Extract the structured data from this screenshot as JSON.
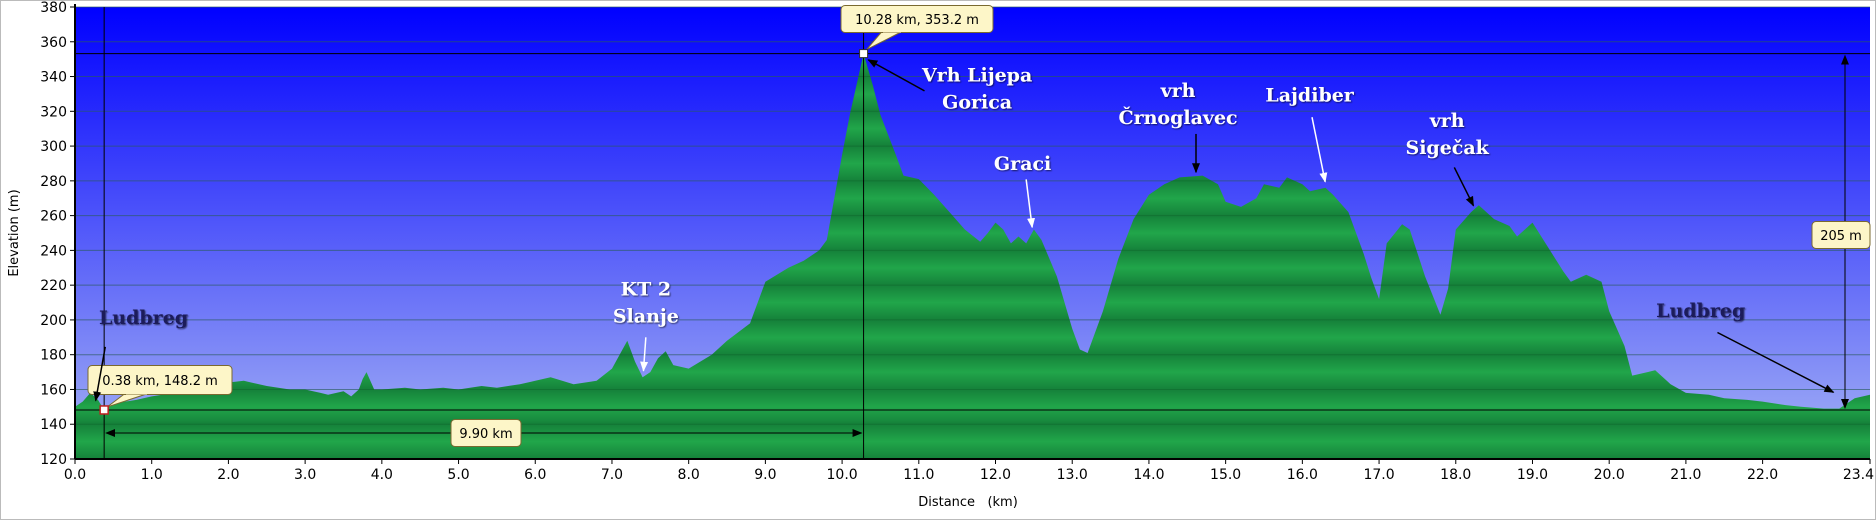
{
  "chart_data": {
    "type": "area",
    "title": "",
    "xlabel": "Distance   (km)",
    "ylabel": "Elevation (m)",
    "xlim": [
      0,
      23.4
    ],
    "ylim": [
      120,
      380
    ],
    "xticks": [
      "0.0",
      "1.0",
      "2.0",
      "3.0",
      "4.0",
      "5.0",
      "6.0",
      "7.0",
      "8.0",
      "9.0",
      "10.0",
      "11.0",
      "12.0",
      "13.0",
      "14.0",
      "15.0",
      "16.0",
      "17.0",
      "18.0",
      "19.0",
      "20.0",
      "21.0",
      "22.0",
      "23.4"
    ],
    "yticks": [
      "120",
      "140",
      "160",
      "180",
      "200",
      "220",
      "240",
      "260",
      "280",
      "300",
      "320",
      "340",
      "360",
      "380"
    ],
    "grid": true,
    "colors": {
      "sky_top": "#0000ff",
      "sky_bottom": "#a6b4f4",
      "fill": "#21a64a",
      "fill_dark": "#15813a"
    },
    "series": [
      {
        "x": [
          0.0,
          0.1,
          0.2,
          0.3,
          0.38,
          0.5,
          0.8,
          1.0,
          1.3,
          1.5,
          1.8,
          2.0,
          2.2,
          2.5,
          2.8,
          3.0,
          3.2,
          3.3,
          3.5,
          3.6,
          3.7,
          3.75,
          3.8,
          3.9,
          4.0,
          4.3,
          4.5,
          4.8,
          5.0,
          5.3,
          5.5,
          5.8,
          6.0,
          6.2,
          6.5,
          6.8,
          7.0,
          7.1,
          7.2,
          7.3,
          7.4,
          7.5,
          7.6,
          7.7,
          7.8,
          8.0,
          8.3,
          8.5,
          8.8,
          9.0,
          9.3,
          9.5,
          9.7,
          9.8,
          10.0,
          10.1,
          10.28,
          10.4,
          10.5,
          10.7,
          10.8,
          11.0,
          11.2,
          11.4,
          11.6,
          11.8,
          11.9,
          12.0,
          12.1,
          12.2,
          12.3,
          12.4,
          12.5,
          12.6,
          12.8,
          13.0,
          13.1,
          13.2,
          13.4,
          13.6,
          13.8,
          14.0,
          14.2,
          14.4,
          14.7,
          14.9,
          15.0,
          15.2,
          15.4,
          15.5,
          15.7,
          15.8,
          16.0,
          16.1,
          16.3,
          16.4,
          16.6,
          16.8,
          16.9,
          17.0,
          17.1,
          17.3,
          17.4,
          17.6,
          17.8,
          17.9,
          18.0,
          18.2,
          18.3,
          18.5,
          18.7,
          18.8,
          19.0,
          19.2,
          19.4,
          19.5,
          19.7,
          19.9,
          20.0,
          20.2,
          20.3,
          20.5,
          20.6,
          20.8,
          21.0,
          21.3,
          21.5,
          21.8,
          22.0,
          22.3,
          22.5,
          22.8,
          23.0,
          23.2,
          23.4
        ],
        "y": [
          150,
          153,
          158,
          154,
          148.2,
          152,
          154,
          156,
          158,
          160,
          163,
          164,
          165,
          162,
          160,
          160,
          158,
          157,
          159,
          156,
          160,
          166,
          170,
          160,
          160,
          161,
          160,
          161,
          160,
          162,
          161,
          163,
          165,
          167,
          163,
          165,
          172,
          180,
          188,
          176,
          167,
          170,
          178,
          182,
          174,
          172,
          180,
          188,
          198,
          222,
          230,
          234,
          240,
          246,
          295,
          318,
          353.2,
          335,
          318,
          295,
          283,
          281,
          272,
          262,
          252,
          245,
          250,
          256,
          252,
          244,
          248,
          244,
          252,
          246,
          225,
          195,
          183,
          181,
          205,
          235,
          258,
          272,
          278,
          282,
          283,
          278,
          268,
          265,
          270,
          278,
          276,
          282,
          278,
          274,
          276,
          272,
          262,
          238,
          224,
          212,
          244,
          255,
          252,
          225,
          203,
          218,
          252,
          262,
          266,
          258,
          254,
          248,
          256,
          242,
          228,
          222,
          226,
          222,
          205,
          185,
          168,
          170,
          171,
          163,
          158,
          157,
          155,
          154,
          153,
          151,
          150,
          149,
          149,
          155,
          157
        ]
      }
    ],
    "markers": [
      {
        "label": "10.28 km, 353.2 m",
        "x": 10.28,
        "y": 353.2
      },
      {
        "label": "0.38 km, 148.2 m",
        "x": 0.38,
        "y": 148.2
      }
    ],
    "measurements": {
      "distance": "9.90 km",
      "elevation_gain": "205 m"
    },
    "annotations": [
      {
        "lines": [
          "Ludbreg"
        ],
        "color": "#1a1a5a"
      },
      {
        "lines": [
          "KT 2",
          "Slanje"
        ],
        "color": "#ffffff"
      },
      {
        "lines": [
          "Vrh Lijepa",
          "Gorica"
        ],
        "color": "#ffffff"
      },
      {
        "lines": [
          "Graci"
        ],
        "color": "#ffffff"
      },
      {
        "lines": [
          "vrh",
          "Črnoglavec"
        ],
        "color": "#ffffff"
      },
      {
        "lines": [
          "Lajdiber"
        ],
        "color": "#ffffff"
      },
      {
        "lines": [
          "vrh",
          "Sigečak"
        ],
        "color": "#ffffff"
      },
      {
        "lines": [
          "Ludbreg"
        ],
        "color": "#1a1a5a"
      }
    ]
  }
}
